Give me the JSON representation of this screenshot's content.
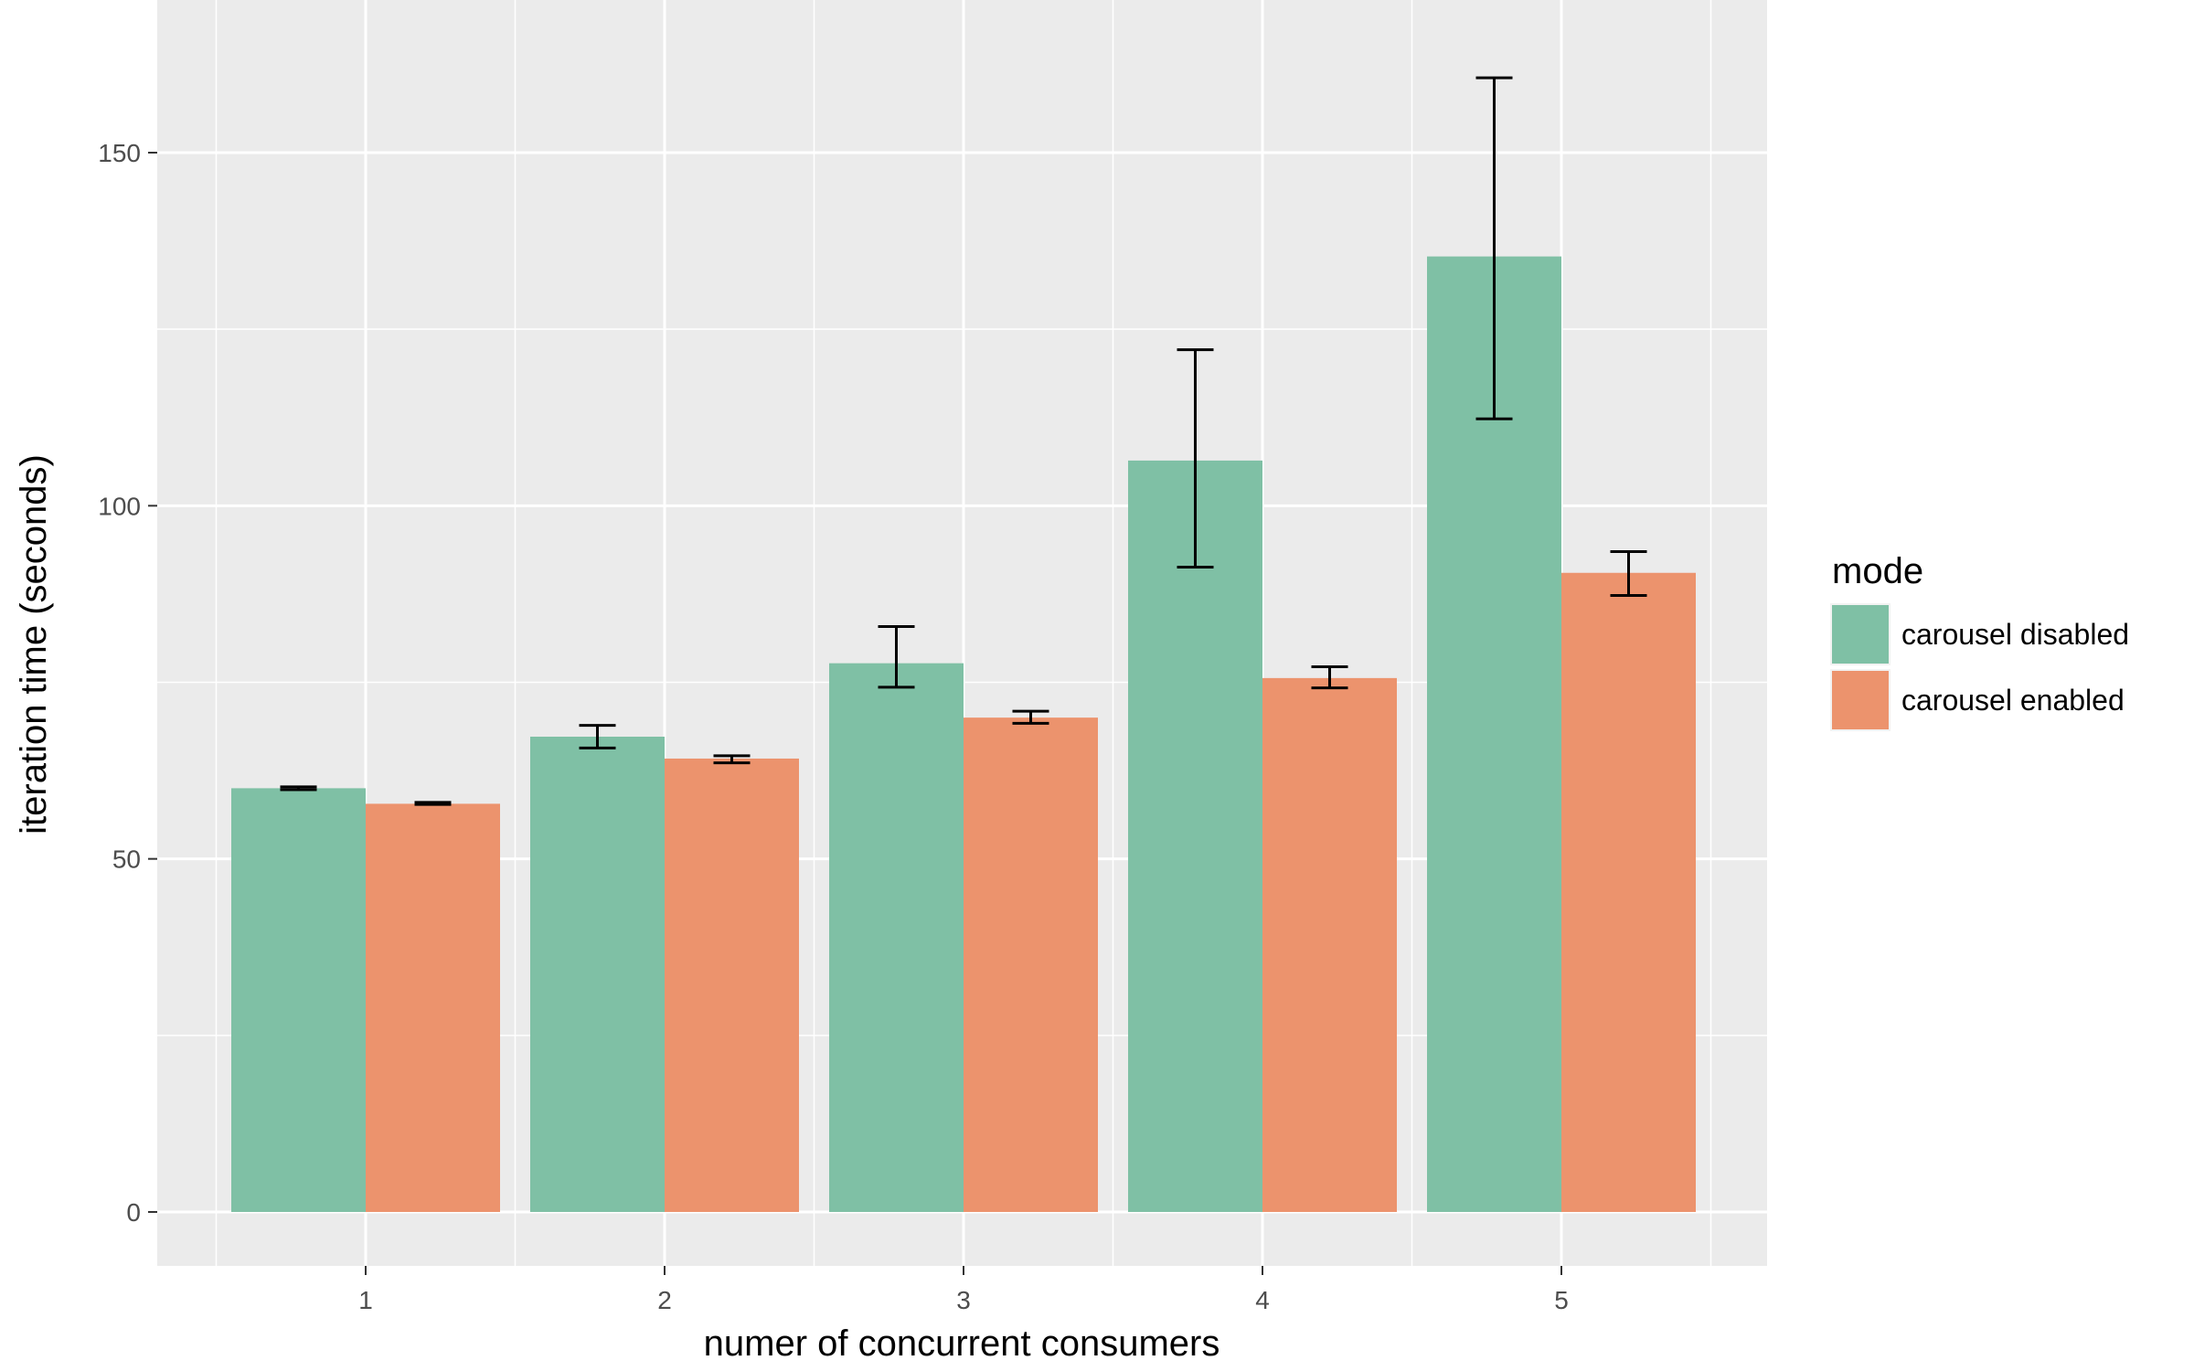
{
  "chart_data": {
    "type": "bar",
    "title": "",
    "xlabel": "numer of concurrent consumers",
    "ylabel": "iteration time (seconds)",
    "categories": [
      "1",
      "2",
      "3",
      "4",
      "5"
    ],
    "ylim": [
      -8,
      169
    ],
    "yticks": [
      0,
      50,
      100,
      150
    ],
    "grid": true,
    "legend": {
      "title": "mode",
      "position": "right"
    },
    "series": [
      {
        "name": "carousel disabled",
        "color": "#7fc0a5",
        "values": [
          60.0,
          67.3,
          77.7,
          106.4,
          135.3
        ],
        "error_low": [
          59.8,
          65.7,
          74.3,
          91.3,
          112.3
        ],
        "error_high": [
          60.2,
          68.9,
          82.9,
          122.1,
          160.6
        ]
      },
      {
        "name": "carousel enabled",
        "color": "#ec936d",
        "values": [
          57.8,
          64.2,
          70.0,
          75.6,
          90.5
        ],
        "error_low": [
          57.7,
          63.6,
          69.2,
          74.2,
          87.3
        ],
        "error_high": [
          58.0,
          64.6,
          70.9,
          77.2,
          93.5
        ]
      }
    ]
  }
}
